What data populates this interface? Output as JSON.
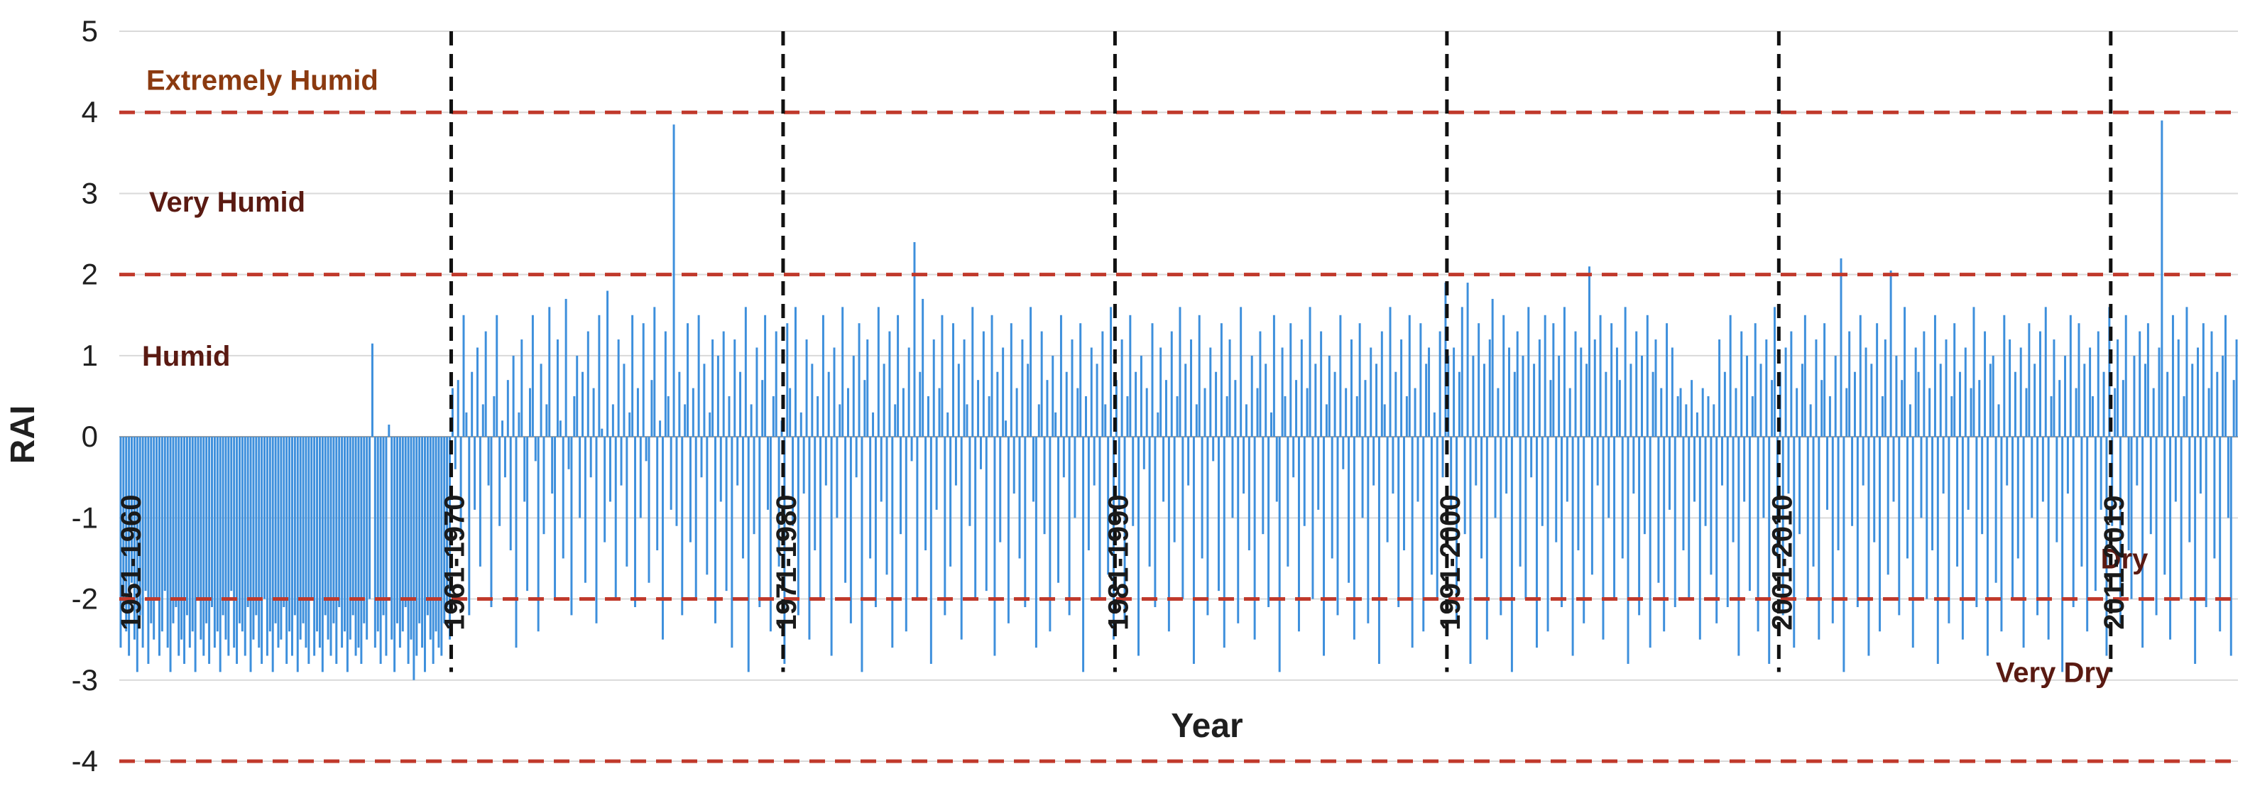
{
  "chart_data": {
    "type": "bar",
    "title": "",
    "xlabel": "Year",
    "ylabel": "RAI",
    "ylim": [
      -4,
      5
    ],
    "y_ticks": [
      "-4",
      "-3",
      "-2",
      "-1",
      "0",
      "1",
      "2",
      "3",
      "4",
      "5"
    ],
    "y_tick_values": [
      -4,
      -3,
      -2,
      -1,
      0,
      1,
      2,
      3,
      4,
      5
    ],
    "grid": true,
    "bar_color": "#3d8fdc",
    "threshold_color": "#c0392b",
    "decade_line_color": "#111111",
    "zone_label_color": "#5a1a12",
    "zone_label_color_top": "#8b3a10",
    "thresholds": [
      -4,
      -2,
      2,
      4
    ],
    "zones": [
      {
        "label": "Extremely Humid",
        "y": 4.4
      },
      {
        "label": "Very Humid",
        "y": 2.9
      },
      {
        "label": "Humid",
        "y": 1.0
      },
      {
        "label": "Dry",
        "y": -1.5
      },
      {
        "label": "Very Dry",
        "y": -2.9
      }
    ],
    "decades": [
      {
        "label": "1951-1960",
        "boundary": 0
      },
      {
        "label": "1961-1970",
        "boundary": 120
      },
      {
        "label": "1971-1980",
        "boundary": 240
      },
      {
        "label": "1981-1990",
        "boundary": 360
      },
      {
        "label": "1991-2000",
        "boundary": 480
      },
      {
        "label": "2001-2010",
        "boundary": 600
      },
      {
        "label": "2011-2019",
        "boundary": 720
      }
    ],
    "series": [
      {
        "name": "",
        "values": [
          -2.6,
          -2.1,
          -2.4,
          -2.7,
          -1.8,
          -2.5,
          -2.9,
          -2.2,
          -2.6,
          -1.9,
          -2.8,
          -2.3,
          -2.5,
          -2.0,
          -2.7,
          -2.4,
          -1.9,
          -2.6,
          -2.9,
          -2.3,
          -2.1,
          -2.7,
          -2.5,
          -2.8,
          -2.2,
          -2.6,
          -2.4,
          -2.9,
          -2.0,
          -2.5,
          -2.7,
          -2.3,
          -2.8,
          -2.1,
          -2.6,
          -2.4,
          -2.9,
          -2.2,
          -2.5,
          -2.7,
          -1.9,
          -2.6,
          -2.8,
          -2.3,
          -2.4,
          -2.7,
          -2.1,
          -2.9,
          -2.5,
          -2.2,
          -2.6,
          -2.8,
          -2.0,
          -2.7,
          -2.4,
          -2.9,
          -2.3,
          -2.6,
          -2.5,
          -2.1,
          -2.8,
          -2.4,
          -2.7,
          -2.2,
          -2.9,
          -2.5,
          -2.3,
          -2.6,
          -2.8,
          -2.0,
          -2.7,
          -2.4,
          -2.6,
          -2.9,
          -2.2,
          -2.5,
          -2.7,
          -2.3,
          -2.8,
          -2.1,
          -2.6,
          -2.4,
          -2.9,
          -2.5,
          -2.2,
          -2.7,
          -2.6,
          -2.8,
          -2.3,
          -2.5,
          -2.0,
          1.15,
          -2.6,
          -2.4,
          -2.8,
          -2.2,
          -2.7,
          0.15,
          -2.5,
          -2.9,
          -2.3,
          -2.6,
          -2.4,
          -2.1,
          -2.8,
          -2.5,
          -3.0,
          -2.7,
          -2.3,
          -2.6,
          -2.9,
          -2.2,
          -2.5,
          -2.8,
          -2.4,
          -2.6,
          -2.7,
          -2.3,
          -2.1,
          -2.5,
          0.6,
          -0.4,
          0.7,
          -1.2,
          1.5,
          0.3,
          -2.2,
          0.8,
          -0.9,
          1.1,
          -1.6,
          0.4,
          1.3,
          -0.6,
          -2.1,
          0.5,
          1.5,
          -1.1,
          0.2,
          -0.5,
          0.7,
          -1.4,
          1.0,
          -2.6,
          0.3,
          1.2,
          -0.8,
          -1.9,
          0.6,
          1.5,
          -0.3,
          -2.4,
          0.9,
          -1.2,
          0.4,
          1.6,
          -0.7,
          -2.0,
          1.2,
          0.2,
          -1.5,
          1.7,
          -0.4,
          -2.2,
          0.5,
          1.0,
          -1.0,
          0.8,
          -1.8,
          1.3,
          -0.5,
          0.6,
          -2.3,
          1.5,
          0.1,
          -1.3,
          1.8,
          -0.8,
          0.4,
          -2.0,
          1.2,
          -0.6,
          0.9,
          -1.6,
          0.3,
          1.5,
          -2.1,
          0.6,
          -1.0,
          1.4,
          -0.3,
          -1.8,
          0.7,
          1.6,
          -1.4,
          0.2,
          -2.5,
          1.3,
          0.5,
          -0.9,
          3.85,
          -1.1,
          0.8,
          -2.2,
          0.4,
          1.4,
          -1.3,
          0.6,
          -2.0,
          1.5,
          -0.5,
          0.9,
          -1.7,
          0.3,
          1.2,
          -2.3,
          1.0,
          -0.8,
          1.3,
          -1.9,
          0.5,
          -2.6,
          1.2,
          -0.6,
          0.8,
          -1.5,
          1.6,
          -2.9,
          0.4,
          -1.2,
          1.1,
          -2.1,
          0.7,
          1.5,
          -0.9,
          -2.4,
          0.5,
          1.3,
          -1.6,
          0.2,
          -2.8,
          1.4,
          0.6,
          -1.1,
          1.6,
          -2.2,
          0.3,
          -0.7,
          1.2,
          -2.5,
          0.9,
          -1.4,
          0.5,
          -2.0,
          1.5,
          -0.6,
          0.8,
          -2.7,
          1.1,
          -1.0,
          0.4,
          1.6,
          -1.8,
          0.6,
          -2.3,
          1.0,
          -0.5,
          1.4,
          -2.9,
          0.7,
          1.2,
          -1.5,
          0.3,
          -2.1,
          1.6,
          -0.8,
          0.9,
          -1.7,
          1.3,
          -2.6,
          0.4,
          1.5,
          -1.2,
          0.6,
          -2.4,
          1.1,
          -0.3,
          2.4,
          -2.0,
          0.8,
          1.7,
          -1.4,
          0.5,
          -2.8,
          1.2,
          -0.9,
          0.6,
          1.5,
          -2.2,
          0.3,
          -1.6,
          1.4,
          -0.6,
          0.9,
          -2.5,
          1.2,
          0.4,
          -1.1,
          1.6,
          -2.0,
          0.7,
          -0.4,
          1.3,
          -1.9,
          0.5,
          1.5,
          -2.7,
          0.8,
          -1.3,
          1.1,
          0.2,
          -2.3,
          1.4,
          -0.7,
          0.6,
          -1.5,
          1.2,
          -2.1,
          0.9,
          1.6,
          -0.8,
          -2.6,
          0.4,
          1.3,
          -1.2,
          0.7,
          -2.4,
          1.0,
          0.3,
          -1.8,
          1.5,
          -0.5,
          0.8,
          -2.2,
          1.2,
          -1.0,
          0.6,
          1.4,
          -2.9,
          0.5,
          -1.4,
          1.1,
          -0.6,
          0.9,
          -2.0,
          1.3,
          0.4,
          -1.7,
          1.6,
          -2.5,
          0.7,
          -0.9,
          1.2,
          -2.3,
          0.5,
          1.5,
          -1.1,
          0.8,
          -2.7,
          1.0,
          -0.4,
          0.6,
          -1.6,
          1.4,
          -2.1,
          0.3,
          1.1,
          -0.8,
          0.7,
          -2.4,
          1.3,
          -1.3,
          0.5,
          1.6,
          -2.0,
          0.9,
          -0.6,
          1.2,
          -2.8,
          0.4,
          1.5,
          -1.5,
          0.6,
          -2.2,
          1.1,
          -0.3,
          0.8,
          -1.9,
          1.4,
          -2.6,
          0.5,
          1.2,
          -1.0,
          0.7,
          -2.3,
          1.6,
          -0.7,
          0.4,
          -1.4,
          1.0,
          -2.5,
          0.6,
          1.3,
          -1.2,
          0.9,
          -2.1,
          0.3,
          1.5,
          -0.8,
          -2.9,
          1.1,
          0.5,
          -1.6,
          1.4,
          -0.5,
          0.7,
          -2.4,
          1.2,
          -1.1,
          0.6,
          1.6,
          -2.0,
          0.9,
          -0.9,
          1.3,
          -2.7,
          0.4,
          1.0,
          -1.5,
          0.8,
          -2.2,
          1.5,
          -0.4,
          0.6,
          -1.8,
          1.2,
          -2.5,
          0.5,
          1.4,
          -1.0,
          0.7,
          -2.3,
          1.1,
          -0.6,
          0.9,
          -2.8,
          1.3,
          0.4,
          -1.3,
          1.6,
          -0.7,
          0.8,
          -2.1,
          1.2,
          -1.4,
          0.5,
          1.5,
          -2.6,
          0.6,
          -0.8,
          1.4,
          -2.4,
          0.9,
          1.1,
          -1.7,
          0.3,
          -2.0,
          1.3,
          -0.5,
          1.9,
          1.0,
          -0.9,
          1.1,
          -2.3,
          0.8,
          1.6,
          -1.2,
          1.9,
          -2.8,
          1.0,
          -0.6,
          1.4,
          -1.5,
          0.9,
          -2.5,
          1.2,
          1.7,
          -1.0,
          0.6,
          -2.2,
          1.5,
          -0.7,
          1.1,
          -2.9,
          0.8,
          1.3,
          -1.6,
          1.0,
          -2.0,
          1.6,
          -0.5,
          0.9,
          -2.6,
          1.2,
          -1.1,
          1.5,
          -2.4,
          0.7,
          1.4,
          -1.3,
          1.0,
          -2.1,
          1.6,
          -0.8,
          0.6,
          -2.7,
          1.3,
          -1.4,
          1.1,
          -2.3,
          0.9,
          2.1,
          -1.7,
          1.2,
          -0.6,
          1.5,
          -2.5,
          0.8,
          -1.0,
          1.4,
          -2.0,
          1.1,
          0.7,
          -1.5,
          1.6,
          -2.8,
          0.9,
          -0.7,
          1.3,
          -2.2,
          1.0,
          -1.2,
          1.5,
          -2.6,
          0.8,
          1.2,
          -1.8,
          0.6,
          -2.4,
          1.4,
          -0.9,
          1.1,
          -2.1,
          0.5,
          0.6,
          -1.4,
          0.4,
          -2.0,
          0.7,
          -0.8,
          0.3,
          -2.5,
          0.6,
          -1.1,
          0.5,
          -1.7,
          0.4,
          -2.3,
          1.2,
          -0.6,
          0.8,
          -2.1,
          1.5,
          -1.3,
          0.6,
          -2.7,
          1.3,
          -0.8,
          1.0,
          -1.9,
          0.5,
          1.4,
          -2.4,
          0.9,
          -1.0,
          1.2,
          -2.8,
          0.7,
          1.6,
          -1.5,
          0.8,
          -2.2,
          1.1,
          -0.7,
          1.3,
          -2.6,
          0.6,
          -1.2,
          0.9,
          1.5,
          -2.0,
          0.4,
          -1.6,
          1.2,
          -2.5,
          0.7,
          1.4,
          -0.9,
          0.5,
          -2.3,
          1.0,
          -1.4,
          2.2,
          -2.9,
          0.6,
          1.3,
          -1.1,
          0.8,
          -2.1,
          1.5,
          -0.6,
          1.1,
          -2.7,
          0.9,
          -1.3,
          1.4,
          -2.4,
          0.5,
          1.2,
          -1.7,
          2.05,
          -0.8,
          1.0,
          -2.2,
          0.7,
          1.6,
          -1.5,
          0.4,
          -2.6,
          1.1,
          0.8,
          -1.0,
          1.3,
          -2.0,
          0.6,
          -1.4,
          1.5,
          -2.8,
          0.9,
          -0.7,
          1.2,
          -2.3,
          0.5,
          1.4,
          -1.6,
          0.8,
          -2.5,
          1.1,
          -0.9,
          0.6,
          1.6,
          -2.1,
          0.7,
          -1.2,
          1.3,
          -2.7,
          0.9,
          1.0,
          -1.8,
          0.4,
          -2.4,
          1.5,
          -0.6,
          1.2,
          -2.0,
          0.8,
          -1.5,
          1.1,
          -2.6,
          0.6,
          1.4,
          -1.0,
          0.9,
          -2.2,
          1.3,
          -0.8,
          1.6,
          -2.5,
          0.5,
          1.2,
          -1.3,
          0.7,
          -2.9,
          1.0,
          -0.7,
          1.5,
          -2.1,
          0.6,
          1.4,
          -1.6,
          0.9,
          -2.4,
          1.1,
          0.5,
          -1.9,
          1.3,
          -0.9,
          0.8,
          -2.7,
          1.6,
          -1.1,
          0.6,
          1.2,
          -2.3,
          0.7,
          1.5,
          -1.4,
          -2.0,
          1.0,
          -0.6,
          1.3,
          -2.6,
          0.9,
          1.4,
          -1.2,
          0.6,
          -2.2,
          1.1,
          3.9,
          -1.7,
          0.8,
          -2.5,
          1.5,
          -0.8,
          1.2,
          -2.0,
          0.5,
          1.6,
          -1.3,
          0.9,
          -2.8,
          1.1,
          -0.7,
          1.4,
          -2.1,
          0.6,
          1.3,
          -1.5,
          0.8,
          -2.4,
          1.0,
          1.5,
          -1.0,
          -2.7,
          0.7,
          1.2
        ]
      }
    ]
  }
}
